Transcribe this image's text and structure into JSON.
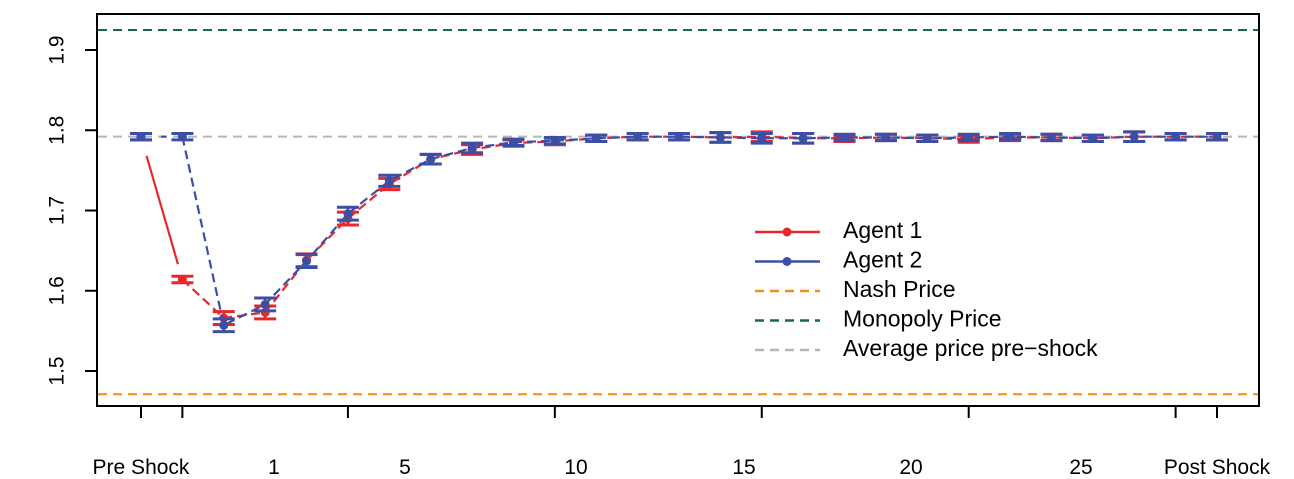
{
  "chart_data": {
    "type": "line",
    "title": "",
    "xlabel": "",
    "ylabel": "",
    "ylim": [
      1.47,
      1.93
    ],
    "y_ticks": [
      "1.5",
      "1.6",
      "1.7",
      "1.8",
      "1.9"
    ],
    "x_ticks": [
      "Pre Shock",
      "1",
      "5",
      "10",
      "15",
      "20",
      "25",
      "Post Shock"
    ],
    "grid": false,
    "legend_position": "right",
    "x": [
      "Pre Shock",
      "1",
      "2",
      "3",
      "4",
      "5",
      "6",
      "7",
      "8",
      "9",
      "10",
      "11",
      "12",
      "13",
      "14",
      "15",
      "16",
      "17",
      "18",
      "19",
      "20",
      "21",
      "22",
      "23",
      "24",
      "25",
      "Post Shock"
    ],
    "series": [
      {
        "name": "Agent 1",
        "color": "#e8262c",
        "values": [
          1.792,
          1.614,
          1.566,
          1.573,
          1.638,
          1.69,
          1.733,
          1.764,
          1.776,
          1.784,
          1.786,
          1.79,
          1.792,
          1.792,
          1.791,
          1.792,
          1.79,
          1.79,
          1.791,
          1.79,
          1.789,
          1.791,
          1.791,
          1.79,
          1.792,
          1.792,
          1.792
        ],
        "errors": [
          0.004,
          0.004,
          0.008,
          0.008,
          0.008,
          0.008,
          0.007,
          0.006,
          0.006,
          0.004,
          0.004,
          0.004,
          0.004,
          0.004,
          0.006,
          0.006,
          0.006,
          0.004,
          0.004,
          0.004,
          0.004,
          0.004,
          0.004,
          0.004,
          0.006,
          0.004,
          0.004
        ]
      },
      {
        "name": "Agent 2",
        "color": "#3b4fa6",
        "values": [
          1.792,
          1.792,
          1.557,
          1.583,
          1.637,
          1.696,
          1.737,
          1.764,
          1.778,
          1.785,
          1.787,
          1.79,
          1.792,
          1.792,
          1.791,
          1.79,
          1.79,
          1.791,
          1.791,
          1.79,
          1.791,
          1.792,
          1.791,
          1.79,
          1.792,
          1.792,
          1.792
        ],
        "errors": [
          0.004,
          0.004,
          0.008,
          0.008,
          0.008,
          0.008,
          0.007,
          0.006,
          0.006,
          0.004,
          0.004,
          0.004,
          0.004,
          0.004,
          0.006,
          0.006,
          0.006,
          0.004,
          0.004,
          0.004,
          0.004,
          0.004,
          0.004,
          0.004,
          0.006,
          0.004,
          0.004
        ]
      }
    ],
    "reference_lines": [
      {
        "name": "Nash Price",
        "value": 1.471,
        "color": "#f28c1b"
      },
      {
        "name": "Monopoly Price",
        "value": 1.925,
        "color": "#1a6b3c"
      },
      {
        "name": "Average price pre−shock",
        "value": 1.792,
        "color": "#b7b7b7"
      }
    ]
  }
}
